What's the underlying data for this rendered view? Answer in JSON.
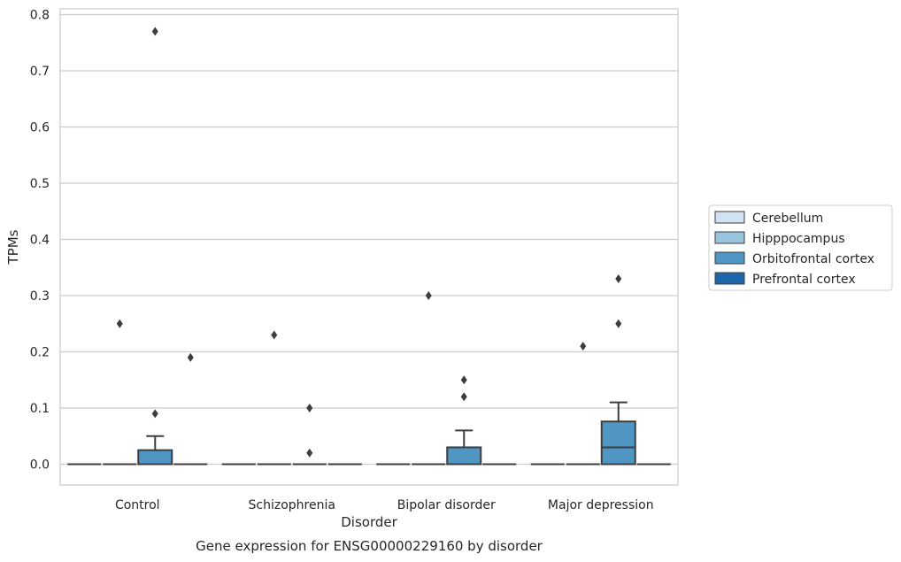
{
  "chart_data": {
    "type": "box",
    "title": "Gene expression for ENSG00000229160 by disorder",
    "xlabel": "Disorder",
    "ylabel": "TPMs",
    "categories": [
      "Control",
      "Schizophrenia",
      "Bipolar disorder",
      "Major depression"
    ],
    "ylim": [
      -0.037,
      0.812
    ],
    "yticks": [
      "0.0",
      "0.1",
      "0.2",
      "0.3",
      "0.4",
      "0.5",
      "0.6",
      "0.7",
      "0.8"
    ],
    "grid": true,
    "legend_position": "right",
    "series": [
      {
        "name": "Cerebellum",
        "color": "#d1e2f2",
        "boxes": [
          {
            "category": "Control",
            "q1": 0,
            "median": 0,
            "q3": 0,
            "whisker_low": 0,
            "whisker_high": 0,
            "outliers": []
          },
          {
            "category": "Schizophrenia",
            "q1": 0,
            "median": 0,
            "q3": 0,
            "whisker_low": 0,
            "whisker_high": 0,
            "outliers": []
          },
          {
            "category": "Bipolar disorder",
            "q1": 0,
            "median": 0,
            "q3": 0,
            "whisker_low": 0,
            "whisker_high": 0,
            "outliers": []
          },
          {
            "category": "Major depression",
            "q1": 0,
            "median": 0,
            "q3": 0,
            "whisker_low": 0,
            "whisker_high": 0,
            "outliers": []
          }
        ]
      },
      {
        "name": "Hipppocampus",
        "color": "#9ac3dd",
        "boxes": [
          {
            "category": "Control",
            "q1": 0,
            "median": 0,
            "q3": 0,
            "whisker_low": 0,
            "whisker_high": 0,
            "outliers": [
              0.25
            ]
          },
          {
            "category": "Schizophrenia",
            "q1": 0,
            "median": 0,
            "q3": 0,
            "whisker_low": 0,
            "whisker_high": 0,
            "outliers": [
              0.23
            ]
          },
          {
            "category": "Bipolar disorder",
            "q1": 0,
            "median": 0,
            "q3": 0,
            "whisker_low": 0,
            "whisker_high": 0,
            "outliers": [
              0.3
            ]
          },
          {
            "category": "Major depression",
            "q1": 0,
            "median": 0,
            "q3": 0,
            "whisker_low": 0,
            "whisker_high": 0,
            "outliers": [
              0.21
            ]
          }
        ]
      },
      {
        "name": "Orbitofrontal cortex",
        "color": "#5096c5",
        "boxes": [
          {
            "category": "Control",
            "q1": 0,
            "median": 0,
            "q3": 0.025,
            "whisker_low": 0,
            "whisker_high": 0.05,
            "outliers": [
              0.09,
              0.77
            ]
          },
          {
            "category": "Schizophrenia",
            "q1": 0,
            "median": 0,
            "q3": 0,
            "whisker_low": 0,
            "whisker_high": 0,
            "outliers": [
              0.1,
              0.02
            ]
          },
          {
            "category": "Bipolar disorder",
            "q1": 0,
            "median": 0,
            "q3": 0.03,
            "whisker_low": 0,
            "whisker_high": 0.06,
            "outliers": [
              0.12,
              0.15
            ]
          },
          {
            "category": "Major depression",
            "q1": 0,
            "median": 0.03,
            "q3": 0.076,
            "whisker_low": 0,
            "whisker_high": 0.11,
            "outliers": [
              0.25,
              0.33
            ]
          }
        ]
      },
      {
        "name": "Prefrontal cortex",
        "color": "#1f67ac",
        "boxes": [
          {
            "category": "Control",
            "q1": 0,
            "median": 0,
            "q3": 0,
            "whisker_low": 0,
            "whisker_high": 0,
            "outliers": [
              0.19
            ]
          },
          {
            "category": "Schizophrenia",
            "q1": 0,
            "median": 0,
            "q3": 0,
            "whisker_low": 0,
            "whisker_high": 0,
            "outliers": []
          },
          {
            "category": "Bipolar disorder",
            "q1": 0,
            "median": 0,
            "q3": 0,
            "whisker_low": 0,
            "whisker_high": 0,
            "outliers": []
          },
          {
            "category": "Major depression",
            "q1": 0,
            "median": 0,
            "q3": 0,
            "whisker_low": 0,
            "whisker_high": 0,
            "outliers": []
          }
        ]
      }
    ]
  }
}
